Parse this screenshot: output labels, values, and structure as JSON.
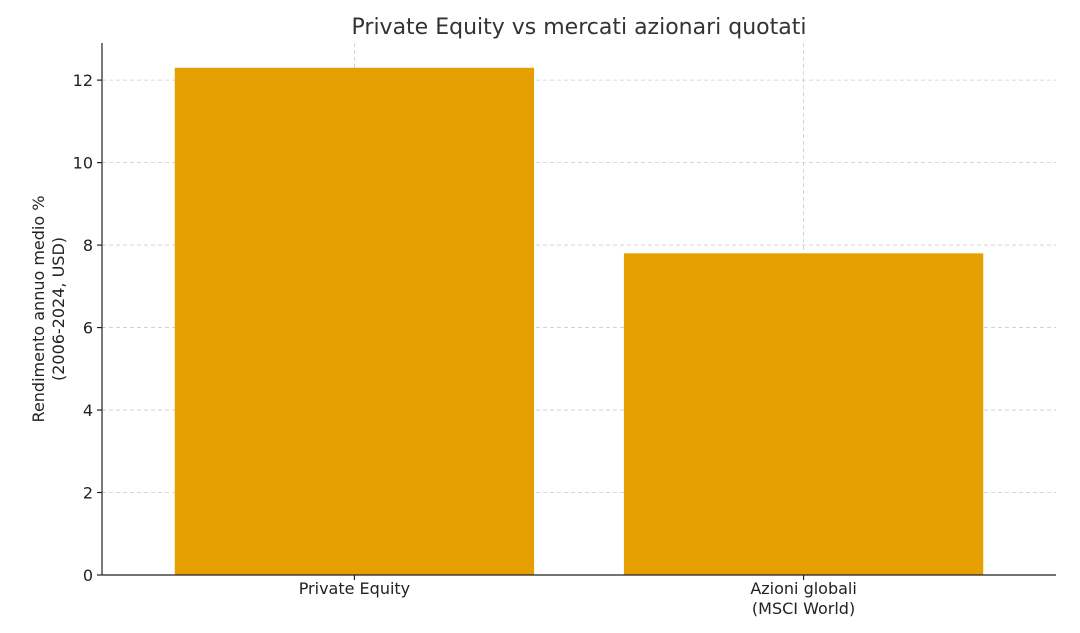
{
  "chart_data": {
    "type": "bar",
    "title": "Private Equity vs mercati azionari quotati",
    "y_label": "Rendimento annuo medio %\n(2006-2024, USD)",
    "categories": [
      "Private Equity",
      "Azioni globali\n(MSCI World)"
    ],
    "values": [
      12.3,
      7.8
    ],
    "color": "#e69f00",
    "ylim": [
      0,
      12.9
    ],
    "yticks": [
      0,
      2,
      4,
      6,
      8,
      10,
      12
    ],
    "grid": true
  }
}
